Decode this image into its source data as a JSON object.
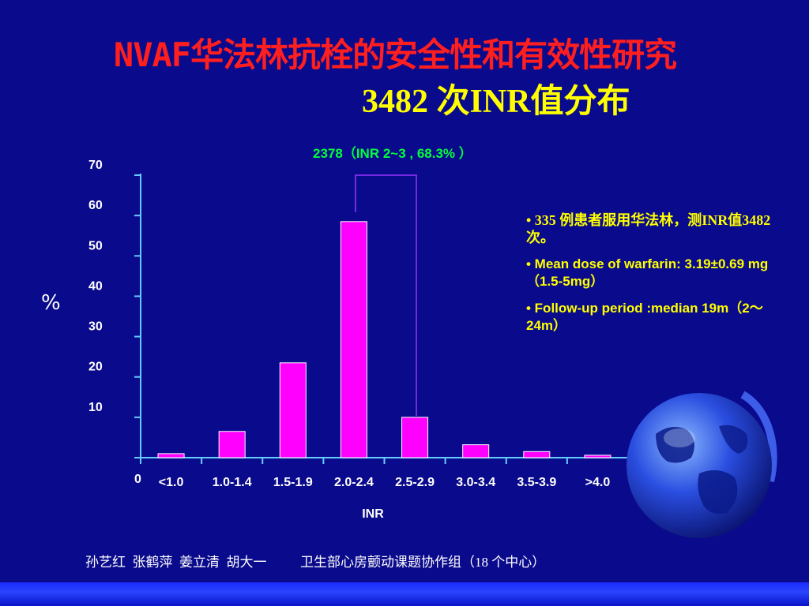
{
  "slide": {
    "title_line1": "NVAF华法林抗栓的安全性和有效性研究",
    "title_line2": "3482 次INR值分布",
    "bullets": [
      "• 335 例患者服用华法林，测INR值3482 次。",
      "• Mean dose of warfarin: 3.19±0.69 mg（1.5-5mg）",
      "• Follow-up period :median 19m（2～24m）"
    ],
    "footer": "孙艺红  张鹤萍  姜立清  胡大一          卫生部心房颤动课题协作组（18 个中心）"
  },
  "chart_data": {
    "type": "bar",
    "categories": [
      "<1.0",
      "1.0-1.4",
      "1.5-1.9",
      "2.0-2.4",
      "2.5-2.9",
      "3.0-3.4",
      "3.5-3.9",
      ">4.0"
    ],
    "values": [
      1,
      6.5,
      23.5,
      58.5,
      10,
      3.2,
      1.5,
      0.6
    ],
    "ylabel": "%",
    "xlabel": "INR",
    "ylim": [
      0,
      70
    ],
    "yticks": [
      0,
      10,
      20,
      30,
      40,
      50,
      60,
      70
    ],
    "bar_color": "#ff00ff",
    "axis_color": "#66ccff",
    "annotation": "2378（INR 2~3 , 68.3% ）",
    "annotation_bracket": [
      "2.0-2.4",
      "2.5-2.9"
    ],
    "annotation_color": "#9933ff"
  },
  "colors": {
    "background": "#0a0a8c",
    "title": "#ff1f1f",
    "subtitle": "#ffff00",
    "annotation": "#00ff3c",
    "bullets": "#ffff00"
  }
}
